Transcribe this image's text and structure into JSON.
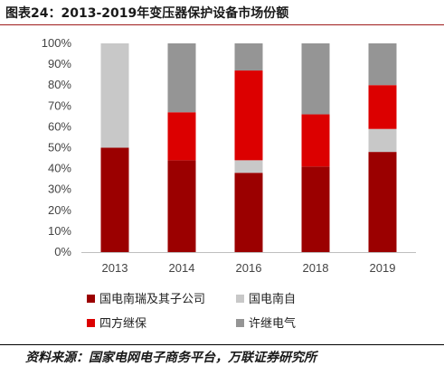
{
  "figure_title": "图表24：2013-2019年变压器保护设备市场份额",
  "source": "资料来源：国家电网电子商务平台，万联证券研究所",
  "chart_data": {
    "type": "bar",
    "stacked": true,
    "categories": [
      "2013",
      "2014",
      "2016",
      "2018",
      "2019"
    ],
    "y_ticks": [
      "0%",
      "10%",
      "20%",
      "30%",
      "40%",
      "50%",
      "60%",
      "70%",
      "80%",
      "90%",
      "100%"
    ],
    "ylim": [
      0,
      100
    ],
    "grid": false,
    "legend_position": "bottom",
    "series": [
      {
        "name": "国电南瑞及其子公司",
        "color": "#9b0000",
        "values": [
          50,
          44,
          38,
          41,
          48
        ]
      },
      {
        "name": "国电南自",
        "color": "#c8c8c8",
        "values": [
          50,
          0,
          6,
          0,
          11
        ]
      },
      {
        "name": "四方继保",
        "color": "#dc0000",
        "values": [
          0,
          23,
          43,
          25,
          21
        ]
      },
      {
        "name": "许继电气",
        "color": "#959595",
        "values": [
          0,
          33,
          13,
          34,
          20
        ]
      }
    ]
  }
}
